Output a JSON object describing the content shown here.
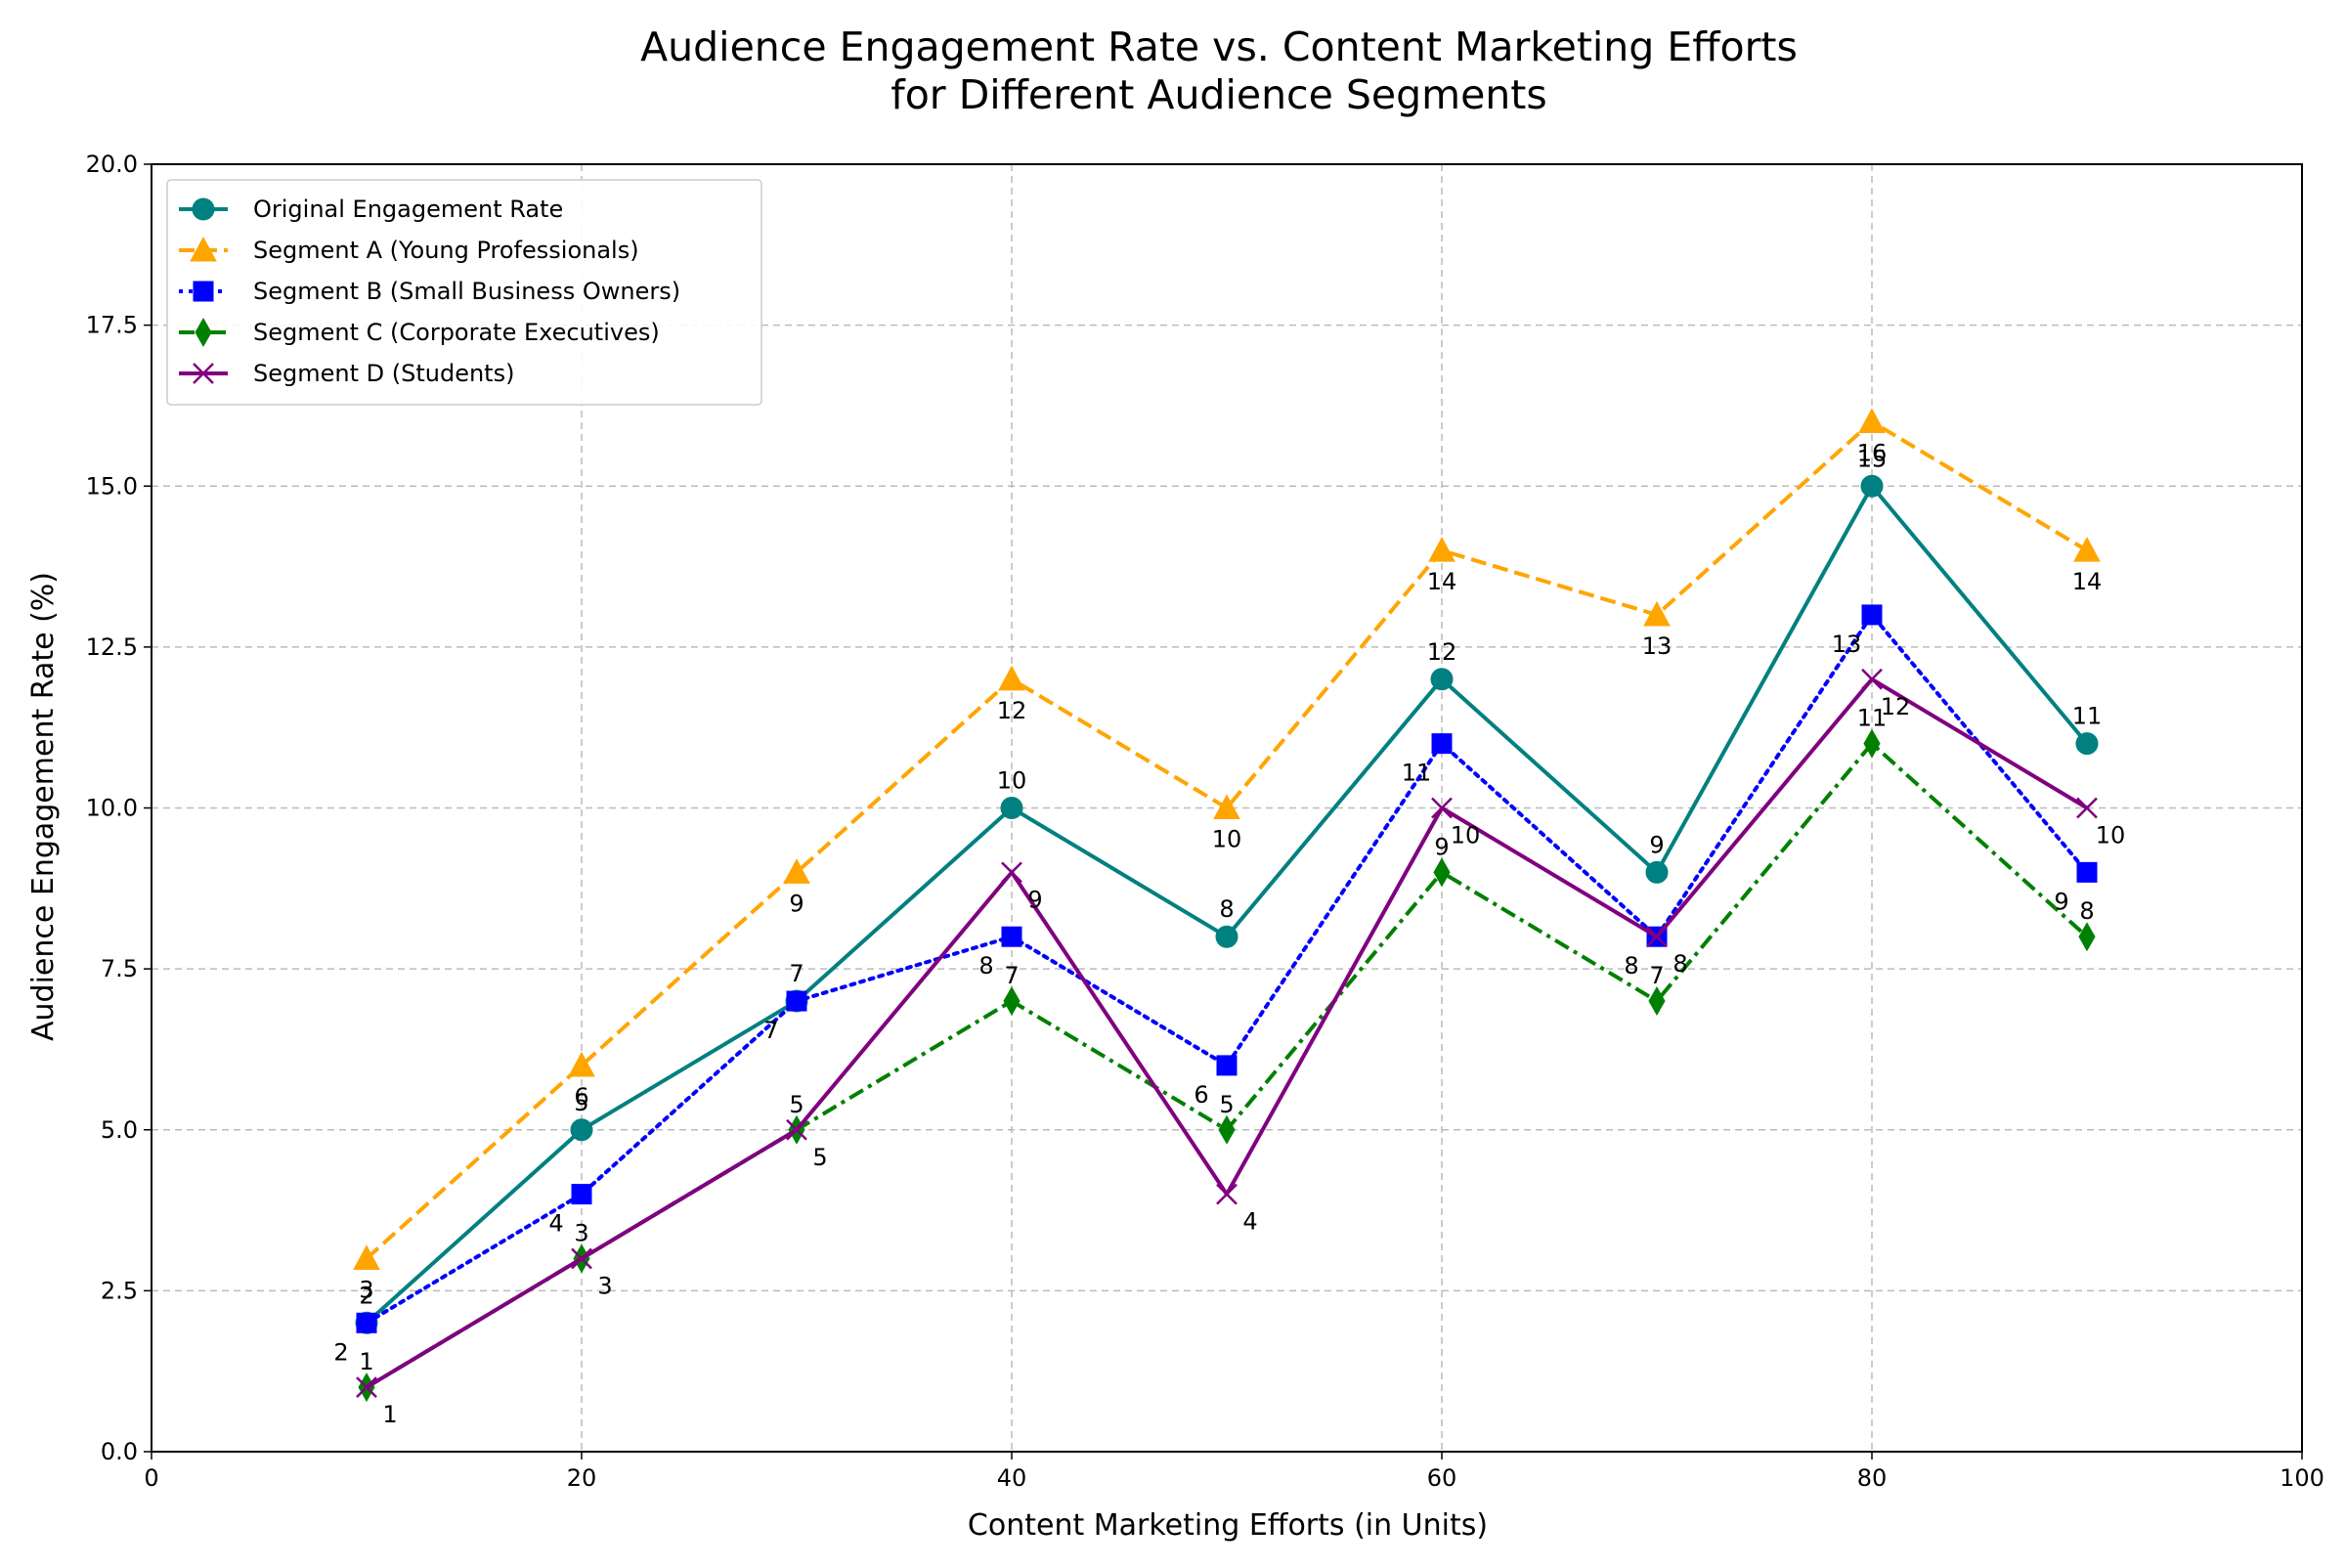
{
  "chart_data": {
    "type": "line",
    "title_lines": [
      "Audience Engagement Rate vs. Content Marketing Efforts",
      "for Different Audience Segments"
    ],
    "xlabel": "Content Marketing Efforts (in Units)",
    "ylabel": "Audience Engagement Rate (%)",
    "xlim": [
      0,
      100
    ],
    "ylim": [
      0,
      20
    ],
    "x_ticks": [
      "0",
      "20",
      "40",
      "60",
      "80",
      "100"
    ],
    "y_ticks": [
      "0.0",
      "2.5",
      "5.0",
      "7.5",
      "10.0",
      "12.5",
      "15.0",
      "17.5",
      "20.0"
    ],
    "grid": true,
    "legend_position": "upper-left",
    "x": [
      10,
      20,
      30,
      40,
      50,
      60,
      70,
      80,
      90
    ],
    "series": [
      {
        "name": "Original Engagement Rate",
        "values": [
          2,
          5,
          7,
          10,
          8,
          12,
          9,
          15,
          11
        ],
        "labels": [
          "2",
          "5",
          "7",
          "10",
          "8",
          "12",
          "9",
          "15",
          "11"
        ],
        "color": "#008080",
        "line_style": "solid",
        "marker": "circle"
      },
      {
        "name": "Segment A (Young Professionals)",
        "values": [
          3,
          6,
          9,
          12,
          10,
          14,
          13,
          16,
          14
        ],
        "labels": [
          "3",
          "6",
          "9",
          "12",
          "10",
          "14",
          "13",
          "16",
          "14"
        ],
        "color": "#FFA500",
        "line_style": "dashed",
        "marker": "triangle"
      },
      {
        "name": "Segment B (Small Business Owners)",
        "values": [
          2,
          4,
          7,
          8,
          6,
          11,
          8,
          13,
          9
        ],
        "labels": [
          "2",
          "4",
          "7",
          "8",
          "6",
          "11",
          "8",
          "13",
          "9"
        ],
        "color": "#0000FF",
        "line_style": "dotted",
        "marker": "square"
      },
      {
        "name": "Segment C (Corporate Executives)",
        "values": [
          1,
          3,
          5,
          7,
          5,
          9,
          7,
          11,
          8
        ],
        "labels": [
          "1",
          "3",
          "5",
          "7",
          "5",
          "9",
          "7",
          "11",
          "8"
        ],
        "color": "#008000",
        "line_style": "dashdot",
        "marker": "diamond"
      },
      {
        "name": "Segment D (Students)",
        "values": [
          1,
          3,
          5,
          9,
          4,
          10,
          8,
          12,
          10
        ],
        "labels": [
          "1",
          "3",
          "5",
          "9",
          "4",
          "10",
          "8",
          "12",
          "10"
        ],
        "color": "#800080",
        "line_style": "solid",
        "marker": "x"
      }
    ]
  }
}
